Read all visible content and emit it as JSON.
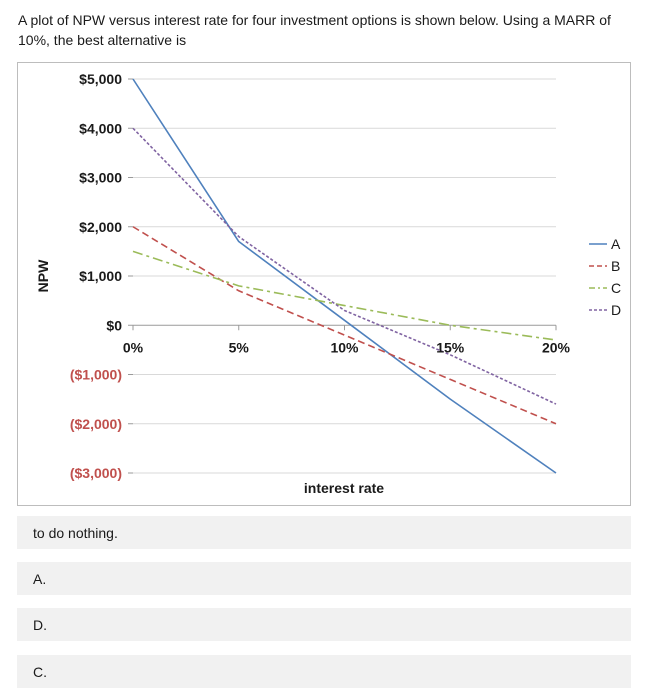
{
  "question": {
    "text": "A plot of NPW versus interest rate for four investment options is shown below. Using a MARR of 10%, the best alternative is"
  },
  "chart_data": {
    "type": "line",
    "title": "",
    "xlabel": "interest rate",
    "ylabel": "NPW",
    "xlim": [
      0,
      20
    ],
    "ylim": [
      -3000,
      5000
    ],
    "x_ticks": [
      {
        "value": 0,
        "label": "0%"
      },
      {
        "value": 5,
        "label": "5%"
      },
      {
        "value": 10,
        "label": "10%"
      },
      {
        "value": 15,
        "label": "15%"
      },
      {
        "value": 20,
        "label": "20%"
      }
    ],
    "y_ticks": [
      {
        "value": 5000,
        "label": "$5,000"
      },
      {
        "value": 4000,
        "label": "$4,000"
      },
      {
        "value": 3000,
        "label": "$3,000"
      },
      {
        "value": 2000,
        "label": "$2,000"
      },
      {
        "value": 1000,
        "label": "$1,000"
      },
      {
        "value": 0,
        "label": "$0"
      },
      {
        "value": -1000,
        "label": "($1,000)"
      },
      {
        "value": -2000,
        "label": "($2,000)"
      },
      {
        "value": -3000,
        "label": "($3,000)"
      }
    ],
    "grid": true,
    "legend": "right",
    "series": [
      {
        "name": "A",
        "color": "#4f81bd",
        "dash": "solid",
        "x": [
          0,
          5,
          10,
          15,
          20
        ],
        "y": [
          5000,
          1700,
          100,
          -1500,
          -3000
        ]
      },
      {
        "name": "B",
        "color": "#c0504d",
        "dash": "dashed",
        "x": [
          0,
          5,
          10,
          15,
          20
        ],
        "y": [
          2000,
          700,
          -200,
          -1100,
          -2000
        ]
      },
      {
        "name": "C",
        "color": "#9bbb59",
        "dash": "dashdot",
        "x": [
          0,
          5,
          10,
          15,
          20
        ],
        "y": [
          1500,
          800,
          400,
          0,
          -300
        ]
      },
      {
        "name": "D",
        "color": "#8064a2",
        "dash": "dotted",
        "x": [
          0,
          5,
          10,
          15,
          20
        ],
        "y": [
          4000,
          1800,
          300,
          -600,
          -1600
        ]
      }
    ]
  },
  "options": [
    {
      "label": "to do nothing."
    },
    {
      "label": "A."
    },
    {
      "label": "D."
    },
    {
      "label": "C."
    }
  ]
}
